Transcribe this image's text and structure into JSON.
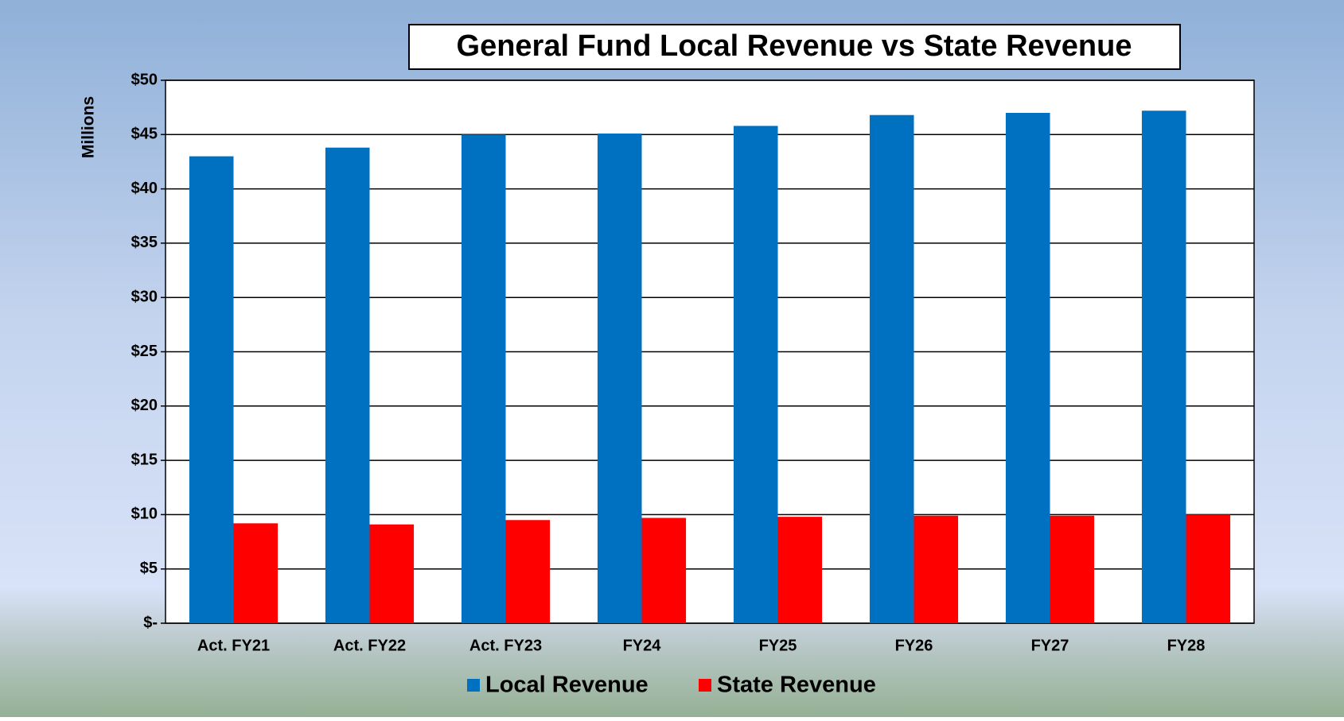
{
  "chart_data": {
    "type": "bar",
    "title": "General Fund Local Revenue vs State Revenue",
    "y_label": "Millions",
    "categories": [
      "Act. FY21",
      "Act. FY22",
      "Act.  FY23",
      "FY24",
      "FY25",
      "FY26",
      "FY27",
      "FY28"
    ],
    "series": [
      {
        "name": "Local Revenue",
        "color": "#0070c0",
        "values": [
          43.0,
          43.8,
          45.0,
          45.1,
          45.8,
          46.8,
          47.0,
          47.2
        ]
      },
      {
        "name": "State Revenue",
        "color": "#ff0000",
        "values": [
          9.2,
          9.1,
          9.5,
          9.7,
          9.8,
          9.9,
          9.9,
          10.0
        ]
      }
    ],
    "ylim": [
      0,
      50
    ],
    "yticks": [
      {
        "value": 0,
        "label": "$-"
      },
      {
        "value": 5,
        "label": "$5"
      },
      {
        "value": 10,
        "label": "$10"
      },
      {
        "value": 15,
        "label": "$15"
      },
      {
        "value": 20,
        "label": "$20"
      },
      {
        "value": 25,
        "label": "$25"
      },
      {
        "value": 30,
        "label": "$30"
      },
      {
        "value": 35,
        "label": "$35"
      },
      {
        "value": 40,
        "label": "$40"
      },
      {
        "value": 45,
        "label": "$45"
      },
      {
        "value": 50,
        "label": "$50"
      }
    ],
    "grid": true,
    "legend": "bottom"
  }
}
